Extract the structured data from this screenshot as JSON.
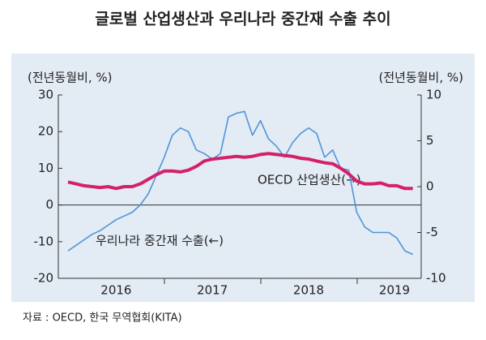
{
  "chart_data": {
    "type": "line",
    "title": "글로벌 산업생산과 우리나라 중간재 수출 추이",
    "ylabel": "(전년동월비, %)",
    "y2label": "(전년동월비, %)",
    "source": "자료 : OECD, 한국 무역협회(KITA)",
    "annotations": [
      "OECD 산업생산(→)",
      "우리나라 중간재 수출(←)"
    ],
    "categories": [
      null,
      null,
      null,
      null,
      null,
      null,
      "2016",
      null,
      null,
      null,
      null,
      null,
      null,
      null,
      null,
      null,
      null,
      null,
      "2017",
      null,
      null,
      null,
      null,
      null,
      null,
      null,
      null,
      null,
      null,
      null,
      "2018",
      null,
      null,
      null,
      null,
      null,
      null,
      null,
      null,
      null,
      null,
      null,
      "2019",
      null
    ],
    "ylim": [
      -20,
      30
    ],
    "yticks": [
      -20,
      -10,
      0,
      10,
      20,
      30
    ],
    "y2lim": [
      -10,
      10
    ],
    "y2ticks": [
      -10,
      -5,
      0,
      5,
      10
    ],
    "series": [
      {
        "name": "우리나라 중간재 수출",
        "color": "#4f95d6",
        "values": [
          -12.5,
          -11,
          -9.5,
          -8,
          -7,
          -5.5,
          -4,
          -3,
          -2,
          0,
          3,
          8,
          13,
          19,
          21,
          20,
          15,
          14,
          12.5,
          14,
          24,
          25,
          25.5,
          19,
          23,
          18,
          16,
          13,
          17,
          19.5,
          21,
          19.5,
          13,
          15,
          10,
          9.5,
          -2,
          -6,
          -7.5,
          -7.5,
          -7.5,
          -9,
          -12.5,
          -13.5
        ]
      },
      {
        "name": "OECD 산업생산",
        "color": "#d4206a",
        "axis": "y2",
        "values": [
          0.5,
          0.3,
          0.1,
          0,
          -0.1,
          0,
          -0.2,
          0,
          0,
          0.3,
          0.8,
          1.3,
          1.7,
          1.7,
          1.6,
          1.8,
          2.2,
          2.8,
          3.0,
          3.1,
          3.2,
          3.3,
          3.2,
          3.3,
          3.5,
          3.6,
          3.5,
          3.4,
          3.3,
          3.1,
          3.0,
          2.8,
          2.6,
          2.5,
          2.0,
          1.4,
          0.6,
          0.3,
          0.3,
          0.4,
          0.1,
          0.1,
          -0.2,
          -0.2
        ]
      }
    ]
  }
}
